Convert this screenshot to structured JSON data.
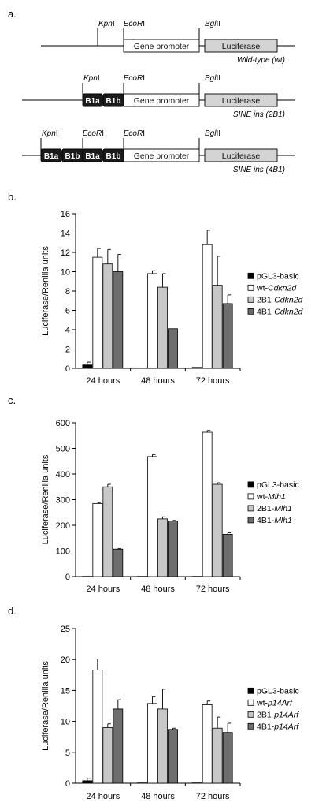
{
  "panel_a": {
    "label": "a.",
    "constructs": [
      {
        "caption": "Wild-type (wt)",
        "sites": [
          "KpnI",
          "EcoRI",
          "BglII"
        ],
        "blocks": [
          "Gene promoter",
          "Luciferase"
        ]
      },
      {
        "caption": "SINE ins (2B1)",
        "sites": [
          "KpnI",
          "EcoRI",
          "BglII"
        ],
        "blocks": [
          "B1a",
          "B1b",
          "Gene promoter",
          "Luciferase"
        ]
      },
      {
        "caption": "SINE ins (4B1)",
        "sites": [
          "KpnI",
          "EcoRI",
          "EcoRI",
          "BglII"
        ],
        "blocks": [
          "B1a",
          "B1b",
          "B1a",
          "B1b",
          "Gene promoter",
          "Luciferase"
        ]
      }
    ]
  },
  "colors": {
    "pgl3": "#000000",
    "wt": "#ffffff",
    "b2": "#c8c8c8",
    "b4": "#6e6e6e",
    "axis": "#000000"
  },
  "chart_data": [
    {
      "panel_label": "b.",
      "type": "bar",
      "ylabel": "Luciferase/Renilla units",
      "ylim": [
        0,
        16
      ],
      "yticks": [
        0,
        2,
        4,
        6,
        8,
        10,
        12,
        14,
        16
      ],
      "categories": [
        "24 hours",
        "48 hours",
        "72 hours"
      ],
      "legend_position": "right",
      "series": [
        {
          "name": "pGL3-basic",
          "prefix": "pGL3-basic",
          "gene": "",
          "color": "#000000",
          "values": [
            0.35,
            0.05,
            0.1
          ],
          "errors": [
            0.3,
            0.0,
            0.0
          ]
        },
        {
          "name": "wt-Cdkn2d",
          "prefix": "wt-",
          "gene": "Cdkn2d",
          "color": "#ffffff",
          "values": [
            11.5,
            9.8,
            12.8
          ],
          "errors": [
            0.9,
            0.3,
            1.5
          ]
        },
        {
          "name": "2B1-Cdkn2d",
          "prefix": "2B1-",
          "gene": "Cdkn2d",
          "color": "#c8c8c8",
          "values": [
            10.8,
            8.4,
            8.6
          ],
          "errors": [
            1.5,
            1.4,
            3.0
          ]
        },
        {
          "name": "4B1-Cdkn2d",
          "prefix": "4B1-",
          "gene": "Cdkn2d",
          "color": "#6e6e6e",
          "values": [
            10.0,
            4.1,
            6.7
          ],
          "errors": [
            1.8,
            0.0,
            0.9
          ]
        }
      ]
    },
    {
      "panel_label": "c.",
      "type": "bar",
      "ylabel": "Luciferase/Renilla units",
      "ylim": [
        0,
        600
      ],
      "yticks": [
        0,
        100,
        200,
        300,
        400,
        500,
        600
      ],
      "categories": [
        "24 hours",
        "48 hours",
        "72 hours"
      ],
      "legend_position": "right",
      "series": [
        {
          "name": "pGL3-basic",
          "prefix": "pGL3-basic",
          "gene": "",
          "color": "#000000",
          "values": [
            1,
            1,
            1
          ],
          "errors": [
            0,
            0,
            0
          ]
        },
        {
          "name": "wt-Mlh1",
          "prefix": "wt-",
          "gene": "Mlh1",
          "color": "#ffffff",
          "values": [
            285,
            468,
            563
          ],
          "errors": [
            2,
            8,
            7
          ]
        },
        {
          "name": "2B1-Mlh1",
          "prefix": "2B1-",
          "gene": "Mlh1",
          "color": "#c8c8c8",
          "values": [
            350,
            225,
            360
          ],
          "errors": [
            10,
            8,
            6
          ]
        },
        {
          "name": "4B1-Mlh1",
          "prefix": "4B1-",
          "gene": "Mlh1",
          "color": "#6e6e6e",
          "values": [
            107,
            217,
            165
          ],
          "errors": [
            2,
            2,
            6
          ]
        }
      ]
    },
    {
      "panel_label": "d.",
      "type": "bar",
      "ylabel": "Luciferase/Renilla units",
      "ylim": [
        0,
        25
      ],
      "yticks": [
        0,
        5,
        10,
        15,
        20,
        25
      ],
      "categories": [
        "24 hours",
        "48 hours",
        "72 hours"
      ],
      "legend_position": "right",
      "series": [
        {
          "name": "pGL3-basic",
          "prefix": "pGL3-basic",
          "gene": "",
          "color": "#000000",
          "values": [
            0.4,
            0.05,
            0.05
          ],
          "errors": [
            0.4,
            0,
            0
          ]
        },
        {
          "name": "wt-p14Arf",
          "prefix": "wt-",
          "gene": "p14Arf",
          "color": "#ffffff",
          "values": [
            18.3,
            12.9,
            12.7
          ],
          "errors": [
            1.8,
            1.1,
            0.6
          ]
        },
        {
          "name": "2B1-p14Arf",
          "prefix": "2B1-",
          "gene": "p14Arf",
          "color": "#c8c8c8",
          "values": [
            9.0,
            12.0,
            8.9
          ],
          "errors": [
            0.6,
            3.2,
            1.8
          ]
        },
        {
          "name": "4B1-p14Arf",
          "prefix": "4B1-",
          "gene": "p14Arf",
          "color": "#6e6e6e",
          "values": [
            12.0,
            8.7,
            8.2
          ],
          "errors": [
            1.5,
            0.2,
            1.5
          ]
        }
      ]
    }
  ]
}
